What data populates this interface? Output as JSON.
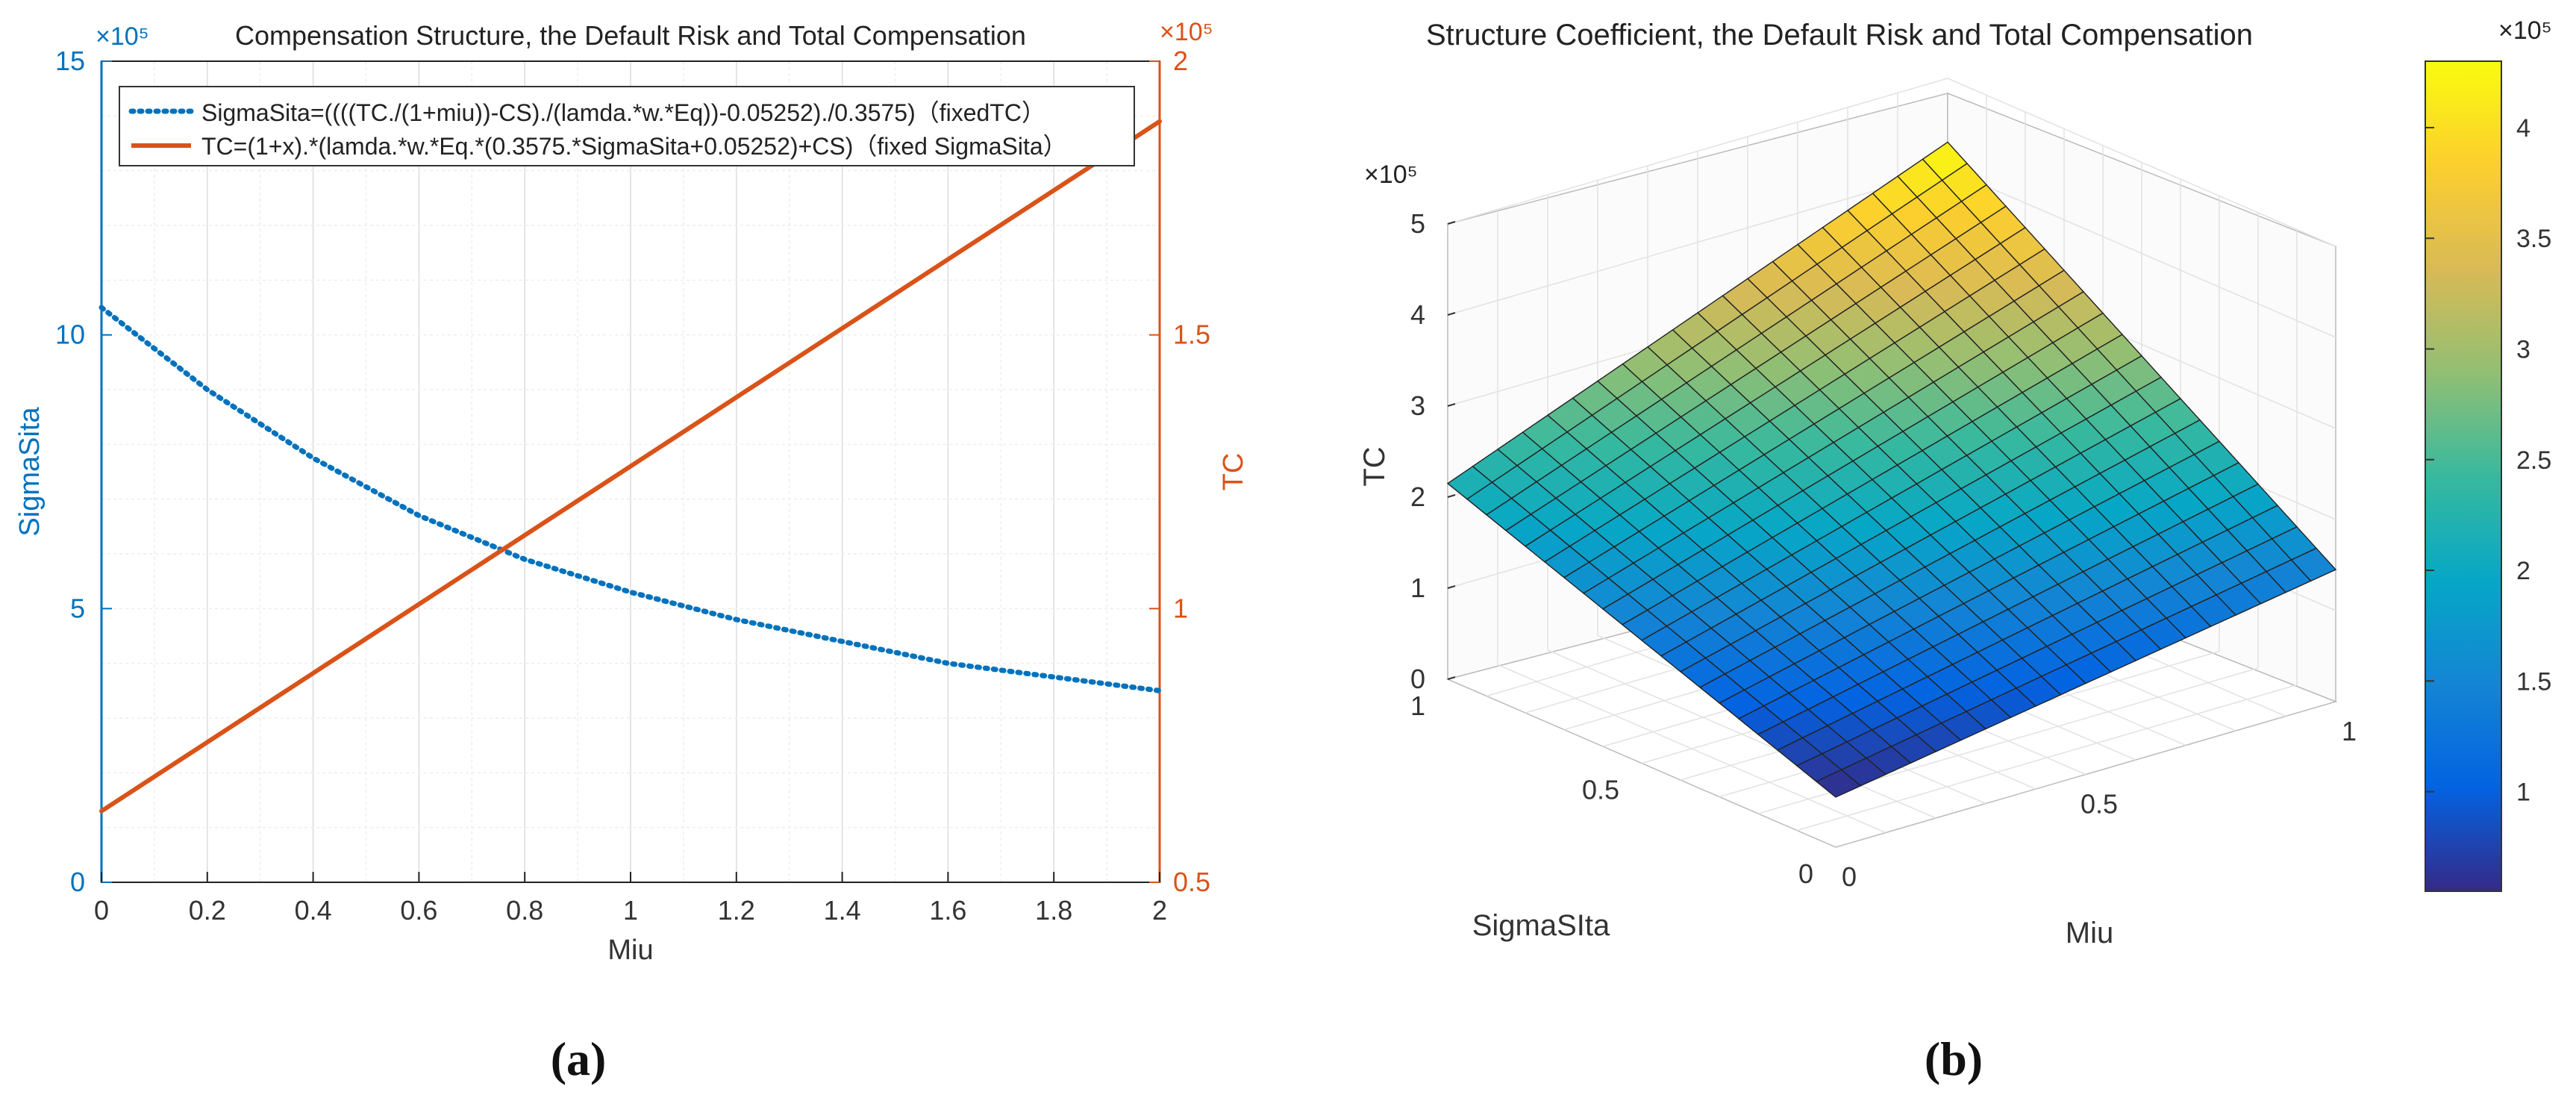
{
  "chart_data": [
    {
      "type": "line",
      "panel_label": "(a)",
      "title": "Compensation Structure, the Default Risk and Total Compensation",
      "xlabel": "Miu",
      "ylabel": "SigmaSita",
      "y2label": "TC",
      "xlim": [
        0,
        2
      ],
      "ylim": [
        0,
        15
      ],
      "y2lim": [
        0.5,
        2
      ],
      "y_exponent": "×10⁵",
      "y2_exponent": "×10⁵",
      "x_ticks": [
        "0",
        "0.2",
        "0.4",
        "0.6",
        "0.8",
        "1",
        "1.2",
        "1.4",
        "1.6",
        "1.8",
        "2"
      ],
      "y_ticks": [
        "0",
        "5",
        "10",
        "15"
      ],
      "y2_ticks": [
        "0.5",
        "1",
        "1.5",
        "2"
      ],
      "grid": true,
      "legend_position": "top",
      "series": [
        {
          "name": "SigmaSita=((((TC./(1+miu))-CS)./(lamda.*w.*Eq))-0.05252)./0.3575)（fixedTC）",
          "axis": "left",
          "style": "dotted",
          "color": "#0072BD",
          "x": [
            0,
            0.2,
            0.4,
            0.6,
            0.8,
            1.0,
            1.2,
            1.4,
            1.6,
            1.8,
            2.0
          ],
          "values": [
            10.5,
            9.0,
            7.75,
            6.7,
            5.9,
            5.3,
            4.8,
            4.4,
            4.0,
            3.75,
            3.5
          ]
        },
        {
          "name": "TC=(1+x).*(lamda.*w.*Eq.*(0.3575.*SigmaSita+0.05252)+CS)（fixed SigmaSita）",
          "axis": "right",
          "style": "solid",
          "color": "#D95319",
          "x": [
            0,
            2.0
          ],
          "values": [
            0.63,
            1.89
          ]
        }
      ]
    },
    {
      "type": "surface",
      "panel_label": "(b)",
      "title": "Structure Coefficient, the Default Risk and Total Compensation",
      "xlabel": "Miu",
      "ylabel": "SigmaSIta",
      "zlabel": "TC",
      "xlim": [
        0,
        1
      ],
      "ylim": [
        0,
        1
      ],
      "zlim": [
        0,
        5
      ],
      "z_exponent": "×10⁵",
      "x_ticks": [
        "0",
        "0.5",
        "1"
      ],
      "y_ticks": [
        "0",
        "0.5",
        "1"
      ],
      "z_ticks": [
        "0",
        "1",
        "2",
        "3",
        "4",
        "5"
      ],
      "corner_values": {
        "miu0_sigma0": 0.55,
        "miu1_sigma0": 1.45,
        "miu0_sigma1": 2.15,
        "miu1_sigma1": 4.3
      },
      "grid_divisions": 20,
      "colorbar": {
        "range": [
          0.55,
          4.3
        ],
        "ticks": [
          "1",
          "1.5",
          "2",
          "2.5",
          "3",
          "3.5",
          "4"
        ],
        "exponent": "×10⁵"
      }
    }
  ]
}
